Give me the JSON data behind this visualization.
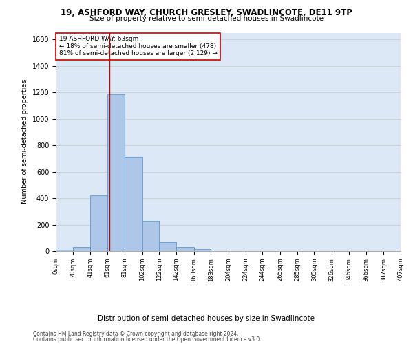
{
  "title_line1": "19, ASHFORD WAY, CHURCH GRESLEY, SWADLINCOTE, DE11 9TP",
  "title_line2": "Size of property relative to semi-detached houses in Swadlincote",
  "xlabel": "Distribution of semi-detached houses by size in Swadlincote",
  "ylabel": "Number of semi-detached properties",
  "footer_line1": "Contains HM Land Registry data © Crown copyright and database right 2024.",
  "footer_line2": "Contains public sector information licensed under the Open Government Licence v3.0.",
  "annotation_title": "19 ASHFORD WAY: 63sqm",
  "annotation_line1": "← 18% of semi-detached houses are smaller (478)",
  "annotation_line2": "81% of semi-detached houses are larger (2,129) →",
  "property_size": 63,
  "bar_left_edges": [
    0,
    20,
    41,
    61,
    81,
    102,
    122,
    142,
    163,
    183,
    204,
    224,
    244,
    265,
    285,
    305,
    326,
    346,
    366,
    387
  ],
  "bar_heights": [
    10,
    30,
    420,
    1185,
    710,
    230,
    65,
    30,
    15,
    0,
    0,
    0,
    0,
    0,
    0,
    0,
    0,
    0,
    0,
    0
  ],
  "bar_widths": [
    20,
    21,
    20,
    20,
    21,
    20,
    20,
    21,
    20,
    21,
    20,
    20,
    21,
    20,
    20,
    21,
    20,
    20,
    21,
    20
  ],
  "bar_color": "#aec6e8",
  "bar_edgecolor": "#5b9bd5",
  "vline_x": 63,
  "vline_color": "#cc0000",
  "ylim": [
    0,
    1650
  ],
  "xlim": [
    0,
    407
  ],
  "xtick_positions": [
    0,
    20,
    41,
    61,
    81,
    102,
    122,
    142,
    163,
    183,
    204,
    224,
    244,
    265,
    285,
    305,
    326,
    346,
    366,
    387,
    407
  ],
  "xtick_labels": [
    "0sqm",
    "20sqm",
    "41sqm",
    "61sqm",
    "81sqm",
    "102sqm",
    "122sqm",
    "142sqm",
    "163sqm",
    "183sqm",
    "204sqm",
    "224sqm",
    "244sqm",
    "265sqm",
    "285sqm",
    "305sqm",
    "326sqm",
    "346sqm",
    "366sqm",
    "387sqm",
    "407sqm"
  ],
  "ytick_positions": [
    0,
    200,
    400,
    600,
    800,
    1000,
    1200,
    1400,
    1600
  ],
  "annotation_box_color": "#cc0000",
  "annotation_box_facecolor": "white",
  "grid_color": "#cccccc",
  "background_color": "#dce8f5",
  "title_fontsize": 8.5,
  "subtitle_fontsize": 7.5,
  "ylabel_fontsize": 7,
  "xlabel_fontsize": 7.5,
  "ytick_fontsize": 7,
  "xtick_fontsize": 6,
  "annotation_fontsize": 6.5,
  "footer_fontsize": 5.5
}
